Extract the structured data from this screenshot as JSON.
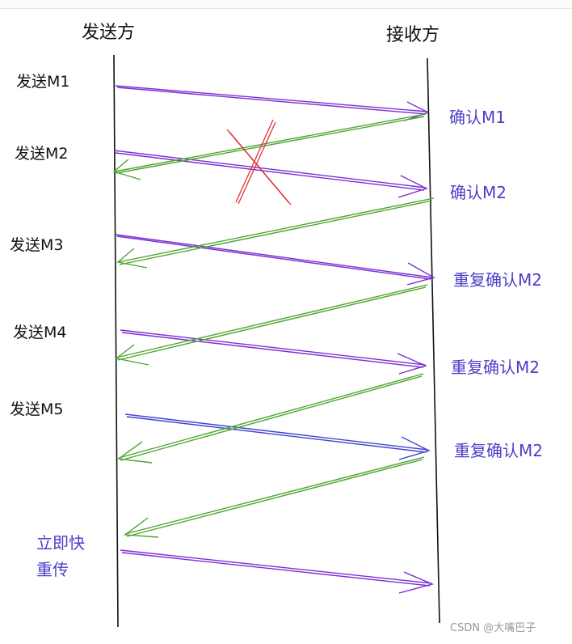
{
  "headers": {
    "sender": "发送方",
    "receiver": "接收方"
  },
  "sends": [
    "发送M1",
    "发送M2",
    "发送M3",
    "发送M4",
    "发送M5"
  ],
  "acks": [
    "确认M1",
    "确认M2",
    "重复确认M2",
    "重复确认M2",
    "重复确认M2"
  ],
  "retransmit_note": {
    "line1": "立即快",
    "line2": "重传"
  },
  "watermark": "CSDN @大嘴巴子",
  "colors": {
    "data_arrow": "#7b2fd3",
    "m5_arrow": "#4444cc",
    "ack_arrow": "#4ea531",
    "ack_text": "#4b3fc8",
    "lost_mark": "#e0303a",
    "lifeline": "#111111"
  }
}
